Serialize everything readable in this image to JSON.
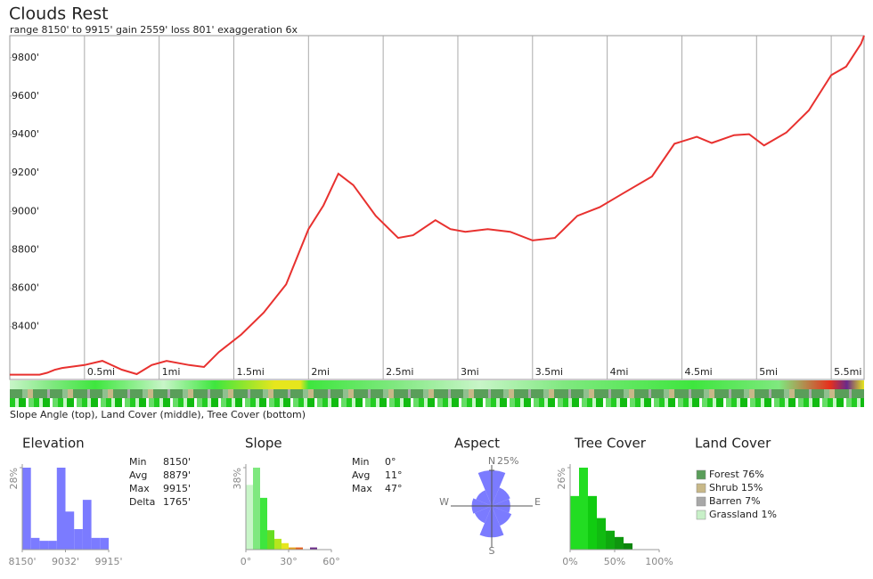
{
  "chart_data": [
    {
      "type": "line",
      "title": "Clouds Rest",
      "subtitle": "range 8150' to 9915'  gain 2559'  loss 801'  exaggeration 6x",
      "color": "#e8312f",
      "x": [
        0,
        0.1,
        0.2,
        0.25,
        0.3,
        0.35,
        0.4,
        0.5,
        0.62,
        0.75,
        0.85,
        0.95,
        1.05,
        1.2,
        1.3,
        1.4,
        1.55,
        1.7,
        1.85,
        2.0,
        2.1,
        2.2,
        2.3,
        2.45,
        2.6,
        2.7,
        2.85,
        2.95,
        3.05,
        3.2,
        3.35,
        3.5,
        3.65,
        3.8,
        3.95,
        4.1,
        4.3,
        4.45,
        4.6,
        4.7,
        4.85,
        4.95,
        5.05,
        5.2,
        5.35,
        5.5,
        5.6,
        5.7,
        5.72
      ],
      "values": [
        8150,
        8150,
        8150,
        8160,
        8175,
        8185,
        8190,
        8200,
        8222,
        8176,
        8153,
        8200,
        8222,
        8200,
        8190,
        8268,
        8359,
        8473,
        8620,
        8908,
        9031,
        9196,
        9137,
        8977,
        8862,
        8876,
        8954,
        8908,
        8894,
        8908,
        8894,
        8849,
        8862,
        8977,
        9022,
        9091,
        9182,
        9352,
        9388,
        9356,
        9397,
        9402,
        9343,
        9411,
        9526,
        9709,
        9754,
        9873,
        9915
      ],
      "xlim": [
        0,
        5.72
      ],
      "ylim": [
        8125,
        9915
      ],
      "xticks": [
        {
          "value": 0.5,
          "label": "0.5mi"
        },
        {
          "value": 1,
          "label": "1mi"
        },
        {
          "value": 1.5,
          "label": "1.5mi"
        },
        {
          "value": 2,
          "label": "2mi"
        },
        {
          "value": 2.5,
          "label": "2.5mi"
        },
        {
          "value": 3,
          "label": "3mi"
        },
        {
          "value": 3.5,
          "label": "3.5mi"
        },
        {
          "value": 4,
          "label": "4mi"
        },
        {
          "value": 4.5,
          "label": "4.5mi"
        },
        {
          "value": 5,
          "label": "5mi"
        },
        {
          "value": 5.5,
          "label": "5.5mi"
        }
      ],
      "yticks": [
        {
          "value": 8400,
          "label": "8400'"
        },
        {
          "value": 8600,
          "label": "8600'"
        },
        {
          "value": 8800,
          "label": "8800'"
        },
        {
          "value": 9000,
          "label": "9000'"
        },
        {
          "value": 9200,
          "label": "9200'"
        },
        {
          "value": 9400,
          "label": "9400'"
        },
        {
          "value": 9600,
          "label": "9600'"
        },
        {
          "value": 9800,
          "label": "9800'"
        }
      ]
    },
    {
      "type": "histogram",
      "title": "Elevation",
      "color": "#7b7bff",
      "bins": [
        8150,
        8326.5,
        8503,
        8679.5,
        8856,
        9032.5,
        9209,
        9385.5,
        9562,
        9738.5,
        9915
      ],
      "values": [
        28,
        4,
        3,
        3,
        28,
        13,
        7,
        17,
        4,
        4
      ],
      "xlim": [
        8150,
        9915
      ],
      "ylim": [
        0,
        28
      ],
      "xticks": [
        {
          "value": 8150,
          "label": "8150'"
        },
        {
          "value": 9032,
          "label": "9032'"
        },
        {
          "value": 9915,
          "label": "9915'"
        }
      ],
      "yticks": [
        {
          "value": 28,
          "label": "28%"
        }
      ]
    },
    {
      "type": "histogram",
      "title": "Slope",
      "colors": [
        "#c8f5c8",
        "#7fe87f",
        "#3ee63e",
        "#66dd22",
        "#b5e61d",
        "#e6e61d",
        "#e6a01d",
        "#e6601d",
        "#e6301d",
        "#6a2a8a",
        "#6a2a8a",
        "#6a2a8a"
      ],
      "bins": [
        0,
        5,
        10,
        15,
        20,
        25,
        30,
        35,
        40,
        45,
        50,
        55,
        60
      ],
      "values": [
        30,
        38,
        24,
        9,
        5,
        3,
        1,
        1,
        0,
        1,
        0,
        0
      ],
      "xlim": [
        0,
        60
      ],
      "ylim": [
        0,
        38
      ],
      "xticks": [
        {
          "value": 0,
          "label": "0°"
        },
        {
          "value": 30,
          "label": "30°"
        },
        {
          "value": 60,
          "label": "60°"
        }
      ],
      "yticks": [
        {
          "value": 38,
          "label": "38%"
        }
      ]
    },
    {
      "type": "rose",
      "title": "Aspect",
      "color": "#7b7bff",
      "values": [
        25,
        14,
        13,
        15,
        22,
        13,
        14,
        12
      ],
      "rlim": [
        0,
        25
      ],
      "rticks": [
        {
          "value": 25,
          "label": "25%"
        }
      ],
      "direction_labels": [
        "N",
        "E",
        "S",
        "W"
      ]
    },
    {
      "type": "histogram",
      "title": "Tree Cover",
      "colors": [
        "#22dd22",
        "#22dd22",
        "#11cc11",
        "#11bb11",
        "#0fa80f",
        "#0e960e",
        "#0c850c",
        "#0a740a",
        "#096309",
        "#085208"
      ],
      "bins": [
        0,
        10,
        20,
        30,
        40,
        50,
        60,
        70,
        80,
        90,
        100
      ],
      "values": [
        17,
        26,
        17,
        10,
        6,
        4,
        2,
        0,
        0,
        0
      ],
      "xlim": [
        0,
        100
      ],
      "ylim": [
        0,
        26
      ],
      "xticks": [
        {
          "value": 0,
          "label": "0%"
        },
        {
          "value": 50,
          "label": "50%"
        },
        {
          "value": 100,
          "label": "100%"
        }
      ],
      "yticks": [
        {
          "value": 26,
          "label": "26%"
        }
      ]
    }
  ],
  "strip_caption": "Slope Angle (top), Land Cover (middle), Tree Cover (bottom)",
  "elevation_stats": [
    [
      "Min",
      "8150'"
    ],
    [
      "Avg",
      "8879'"
    ],
    [
      "Max",
      "9915'"
    ],
    [
      "Delta",
      "1765'"
    ]
  ],
  "slope_stats": [
    [
      "Min",
      "0°"
    ],
    [
      "Avg",
      "11°"
    ],
    [
      "Max",
      "47°"
    ]
  ],
  "land_cover": {
    "title": "Land Cover",
    "items": [
      {
        "label": "Forest 76%",
        "color": "#5a9e5a"
      },
      {
        "label": "Shrub 15%",
        "color": "#c8b888"
      },
      {
        "label": "Barren 7%",
        "color": "#a8a8a8"
      },
      {
        "label": "Grassland 1%",
        "color": "#c8f0c8"
      }
    ]
  }
}
